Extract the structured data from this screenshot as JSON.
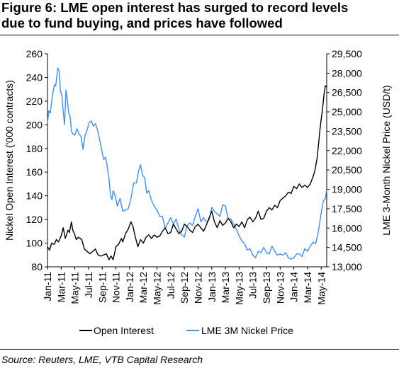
{
  "title": {
    "line1": "Figure 6: LME open interest has surged to record levels",
    "line2": "due to fund buying, and prices have followed"
  },
  "source": "Source: Reuters, LME, VTB Capital Research",
  "colors": {
    "open_interest": "#000000",
    "nickel_price": "#3a8fff"
  },
  "chart_data": {
    "type": "line",
    "ylabel_left": "Nickel Open Interest ('000 contracts)",
    "ylabel_right": "LME 3-Month Nickel Price (USD/t)",
    "y_left": {
      "min": 80,
      "max": 260,
      "ticks": [
        "80",
        "100",
        "120",
        "140",
        "160",
        "180",
        "200",
        "220",
        "240",
        "260"
      ]
    },
    "y_right": {
      "min": 13000,
      "max": 29500,
      "ticks": [
        "13,000",
        "14,500",
        "16,000",
        "17,500",
        "19,000",
        "20,500",
        "22,000",
        "23,500",
        "25,000",
        "26,500",
        "28,000",
        "29,500"
      ]
    },
    "x_labels": [
      "Jan-11",
      "Mar-11",
      "May-11",
      "Jul-11",
      "Sep-11",
      "Nov-11",
      "Jan-12",
      "Mar-12",
      "May-12",
      "Jul-12",
      "Sep-12",
      "Nov-12",
      "Jan-13",
      "Mar-13",
      "May-13",
      "Jul-13",
      "Sep-13",
      "Nov-13",
      "Jan-14",
      "Mar-14",
      "May-14"
    ],
    "x_range_months": [
      0,
      40.8
    ],
    "grid": false,
    "legend_position": "bottom",
    "series": [
      {
        "name": "Open Interest",
        "axis": "left",
        "points": [
          [
            0,
            97
          ],
          [
            0.3,
            94
          ],
          [
            0.6,
            100
          ],
          [
            1,
            99
          ],
          [
            1.3,
            103
          ],
          [
            1.6,
            101
          ],
          [
            2,
            106
          ],
          [
            2.3,
            113
          ],
          [
            2.6,
            104
          ],
          [
            3,
            111
          ],
          [
            3.2,
            109
          ],
          [
            3.5,
            118
          ],
          [
            3.7,
            111
          ],
          [
            4,
            107
          ],
          [
            4.2,
            103
          ],
          [
            4.5,
            105
          ],
          [
            5,
            103
          ],
          [
            5.4,
            95
          ],
          [
            5.8,
            93
          ],
          [
            6.2,
            91
          ],
          [
            6.6,
            93
          ],
          [
            7,
            95
          ],
          [
            7.4,
            90
          ],
          [
            7.8,
            89
          ],
          [
            8.2,
            90
          ],
          [
            8.6,
            91
          ],
          [
            9,
            86
          ],
          [
            9.3,
            89
          ],
          [
            9.6,
            86
          ],
          [
            10,
            97
          ],
          [
            10.4,
            99
          ],
          [
            10.8,
            104
          ],
          [
            11,
            101
          ],
          [
            11.4,
            108
          ],
          [
            11.8,
            112
          ],
          [
            12.2,
            118
          ],
          [
            12.5,
            114
          ],
          [
            12.8,
            106
          ],
          [
            13.2,
            97
          ],
          [
            13.6,
            103
          ],
          [
            14,
            100
          ],
          [
            14.4,
            105
          ],
          [
            14.8,
            107
          ],
          [
            15.2,
            104
          ],
          [
            15.6,
            107
          ],
          [
            16,
            105
          ],
          [
            16.4,
            106
          ],
          [
            16.8,
            110
          ],
          [
            17.2,
            113
          ],
          [
            17.6,
            108
          ],
          [
            18,
            109
          ],
          [
            18.4,
            116
          ],
          [
            18.8,
            112
          ],
          [
            19.2,
            108
          ],
          [
            19.6,
            110
          ],
          [
            20,
            116
          ],
          [
            20.4,
            114
          ],
          [
            20.8,
            111
          ],
          [
            21.2,
            109
          ],
          [
            21.6,
            114
          ],
          [
            22,
            116
          ],
          [
            22.4,
            113
          ],
          [
            22.8,
            110
          ],
          [
            23.2,
            115
          ],
          [
            23.6,
            121
          ],
          [
            24,
            127
          ],
          [
            24.4,
            118
          ],
          [
            24.8,
            113
          ],
          [
            25.2,
            119
          ],
          [
            25.6,
            115
          ],
          [
            26,
            117
          ],
          [
            26.4,
            121
          ],
          [
            26.8,
            118
          ],
          [
            27.2,
            113
          ],
          [
            27.6,
            116
          ],
          [
            28,
            114
          ],
          [
            28.4,
            118
          ],
          [
            28.8,
            113
          ],
          [
            29.2,
            120
          ],
          [
            29.6,
            122
          ],
          [
            30,
            118
          ],
          [
            30.4,
            121
          ],
          [
            30.8,
            127
          ],
          [
            31.2,
            120
          ],
          [
            31.6,
            121
          ],
          [
            32,
            127
          ],
          [
            32.4,
            130
          ],
          [
            32.8,
            128
          ],
          [
            33.2,
            132
          ],
          [
            33.6,
            130
          ],
          [
            34,
            136
          ],
          [
            34.4,
            138
          ],
          [
            34.8,
            140
          ],
          [
            35.2,
            143
          ],
          [
            35.6,
            142
          ],
          [
            36,
            148
          ],
          [
            36.4,
            146
          ],
          [
            36.8,
            150
          ],
          [
            37.2,
            147
          ],
          [
            37.6,
            149
          ],
          [
            38,
            147
          ],
          [
            38.4,
            150
          ],
          [
            38.8,
            156
          ],
          [
            39.1,
            162
          ],
          [
            39.4,
            172
          ],
          [
            39.6,
            183
          ],
          [
            39.8,
            195
          ],
          [
            40,
            205
          ],
          [
            40.2,
            214
          ],
          [
            40.4,
            225
          ],
          [
            40.6,
            233
          ],
          [
            40.8,
            232
          ]
        ]
      },
      {
        "name": "LME 3M Nickel Price",
        "axis": "right",
        "points": [
          [
            0,
            24100
          ],
          [
            0.2,
            25100
          ],
          [
            0.4,
            24900
          ],
          [
            0.7,
            26200
          ],
          [
            1,
            27100
          ],
          [
            1.2,
            27000
          ],
          [
            1.5,
            28400
          ],
          [
            1.7,
            28200
          ],
          [
            1.9,
            26600
          ],
          [
            2.1,
            26300
          ],
          [
            2.3,
            25000
          ],
          [
            2.5,
            24000
          ],
          [
            2.7,
            26700
          ],
          [
            2.9,
            26000
          ],
          [
            3.1,
            24900
          ],
          [
            3.3,
            24700
          ],
          [
            3.5,
            23500
          ],
          [
            3.7,
            23300
          ],
          [
            4,
            23200
          ],
          [
            4.3,
            23700
          ],
          [
            4.6,
            23300
          ],
          [
            4.9,
            23100
          ],
          [
            5.2,
            22100
          ],
          [
            5.5,
            23200
          ],
          [
            5.8,
            23600
          ],
          [
            6.1,
            24200
          ],
          [
            6.4,
            24300
          ],
          [
            6.7,
            23900
          ],
          [
            7,
            24100
          ],
          [
            7.3,
            23600
          ],
          [
            7.6,
            22900
          ],
          [
            7.9,
            22100
          ],
          [
            8.2,
            21300
          ],
          [
            8.5,
            21500
          ],
          [
            8.8,
            20500
          ],
          [
            9,
            19800
          ],
          [
            9.2,
            18600
          ],
          [
            9.4,
            18200
          ],
          [
            9.6,
            18900
          ],
          [
            9.9,
            18500
          ],
          [
            10.2,
            17700
          ],
          [
            10.6,
            18300
          ],
          [
            11,
            17300
          ],
          [
            11.4,
            17400
          ],
          [
            11.8,
            17500
          ],
          [
            12.2,
            18300
          ],
          [
            12.6,
            19500
          ],
          [
            13,
            19500
          ],
          [
            13.3,
            20400
          ],
          [
            13.6,
            20900
          ],
          [
            13.9,
            20100
          ],
          [
            14.2,
            19900
          ],
          [
            14.5,
            18700
          ],
          [
            14.8,
            18900
          ],
          [
            15.1,
            18300
          ],
          [
            15.4,
            17900
          ],
          [
            15.7,
            17600
          ],
          [
            16,
            17400
          ],
          [
            16.4,
            16900
          ],
          [
            16.8,
            16900
          ],
          [
            17.2,
            16000
          ],
          [
            17.6,
            16400
          ],
          [
            18,
            16800
          ],
          [
            18.4,
            16300
          ],
          [
            18.8,
            16700
          ],
          [
            19.2,
            15900
          ],
          [
            19.6,
            15500
          ],
          [
            20,
            15300
          ],
          [
            20.4,
            16200
          ],
          [
            20.8,
            16400
          ],
          [
            21.2,
            16200
          ],
          [
            21.6,
            16900
          ],
          [
            22,
            17500
          ],
          [
            22.4,
            16500
          ],
          [
            22.8,
            16800
          ],
          [
            23.2,
            16500
          ],
          [
            23.6,
            16600
          ],
          [
            24,
            17600
          ],
          [
            24.4,
            17300
          ],
          [
            24.8,
            17100
          ],
          [
            25.2,
            16900
          ],
          [
            25.6,
            17800
          ],
          [
            26,
            17700
          ],
          [
            26.4,
            16700
          ],
          [
            26.8,
            16700
          ],
          [
            27.2,
            16300
          ],
          [
            27.6,
            15900
          ],
          [
            28,
            15400
          ],
          [
            28.4,
            15000
          ],
          [
            28.8,
            14800
          ],
          [
            29.2,
            14300
          ],
          [
            29.6,
            14400
          ],
          [
            30,
            13900
          ],
          [
            30.4,
            13700
          ],
          [
            30.8,
            14200
          ],
          [
            31.2,
            14100
          ],
          [
            31.6,
            14500
          ],
          [
            32,
            14100
          ],
          [
            32.4,
            14000
          ],
          [
            32.8,
            14600
          ],
          [
            33.2,
            14200
          ],
          [
            33.6,
            13900
          ],
          [
            34,
            14000
          ],
          [
            34.4,
            13900
          ],
          [
            34.8,
            14100
          ],
          [
            35.2,
            13700
          ],
          [
            35.6,
            13600
          ],
          [
            36,
            13700
          ],
          [
            36.4,
            14000
          ],
          [
            36.8,
            14000
          ],
          [
            37.2,
            13800
          ],
          [
            37.6,
            14400
          ],
          [
            38,
            14200
          ],
          [
            38.4,
            14600
          ],
          [
            38.8,
            14900
          ],
          [
            39.2,
            14800
          ],
          [
            39.6,
            15800
          ],
          [
            40,
            17200
          ],
          [
            40.3,
            18100
          ],
          [
            40.6,
            18300
          ],
          [
            40.8,
            19000
          ]
        ]
      }
    ]
  }
}
